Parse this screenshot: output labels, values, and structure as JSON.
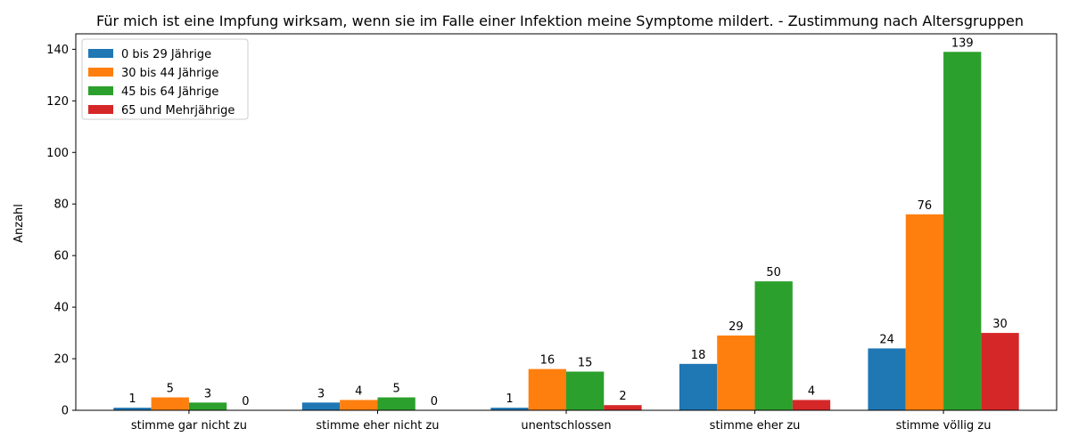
{
  "chart_data": {
    "type": "bar",
    "title": "Für mich ist eine Impfung wirksam, wenn sie im Falle einer Infektion meine Symptome mildert. - Zustimmung nach Altersgruppen",
    "xlabel": "",
    "ylabel": "Anzahl",
    "ylim": [
      0,
      146
    ],
    "yticks": [
      0,
      20,
      40,
      60,
      80,
      100,
      120,
      140
    ],
    "grid": false,
    "legend_position": "top-left",
    "categories": [
      "stimme gar nicht zu",
      "stimme eher nicht zu",
      "unentschlossen",
      "stimme eher zu",
      "stimme völlig zu"
    ],
    "series": [
      {
        "name": "0 bis 29 Jährige",
        "color": "#1f77b4",
        "values": [
          1,
          3,
          1,
          18,
          24
        ]
      },
      {
        "name": "30 bis 44 Jährige",
        "color": "#ff7f0e",
        "values": [
          5,
          4,
          16,
          29,
          76
        ]
      },
      {
        "name": "45 bis 64 Jährige",
        "color": "#2ca02c",
        "values": [
          3,
          5,
          15,
          50,
          139
        ]
      },
      {
        "name": "65 und Mehrjährige",
        "color": "#d62728",
        "values": [
          0,
          0,
          2,
          4,
          30
        ]
      }
    ]
  }
}
